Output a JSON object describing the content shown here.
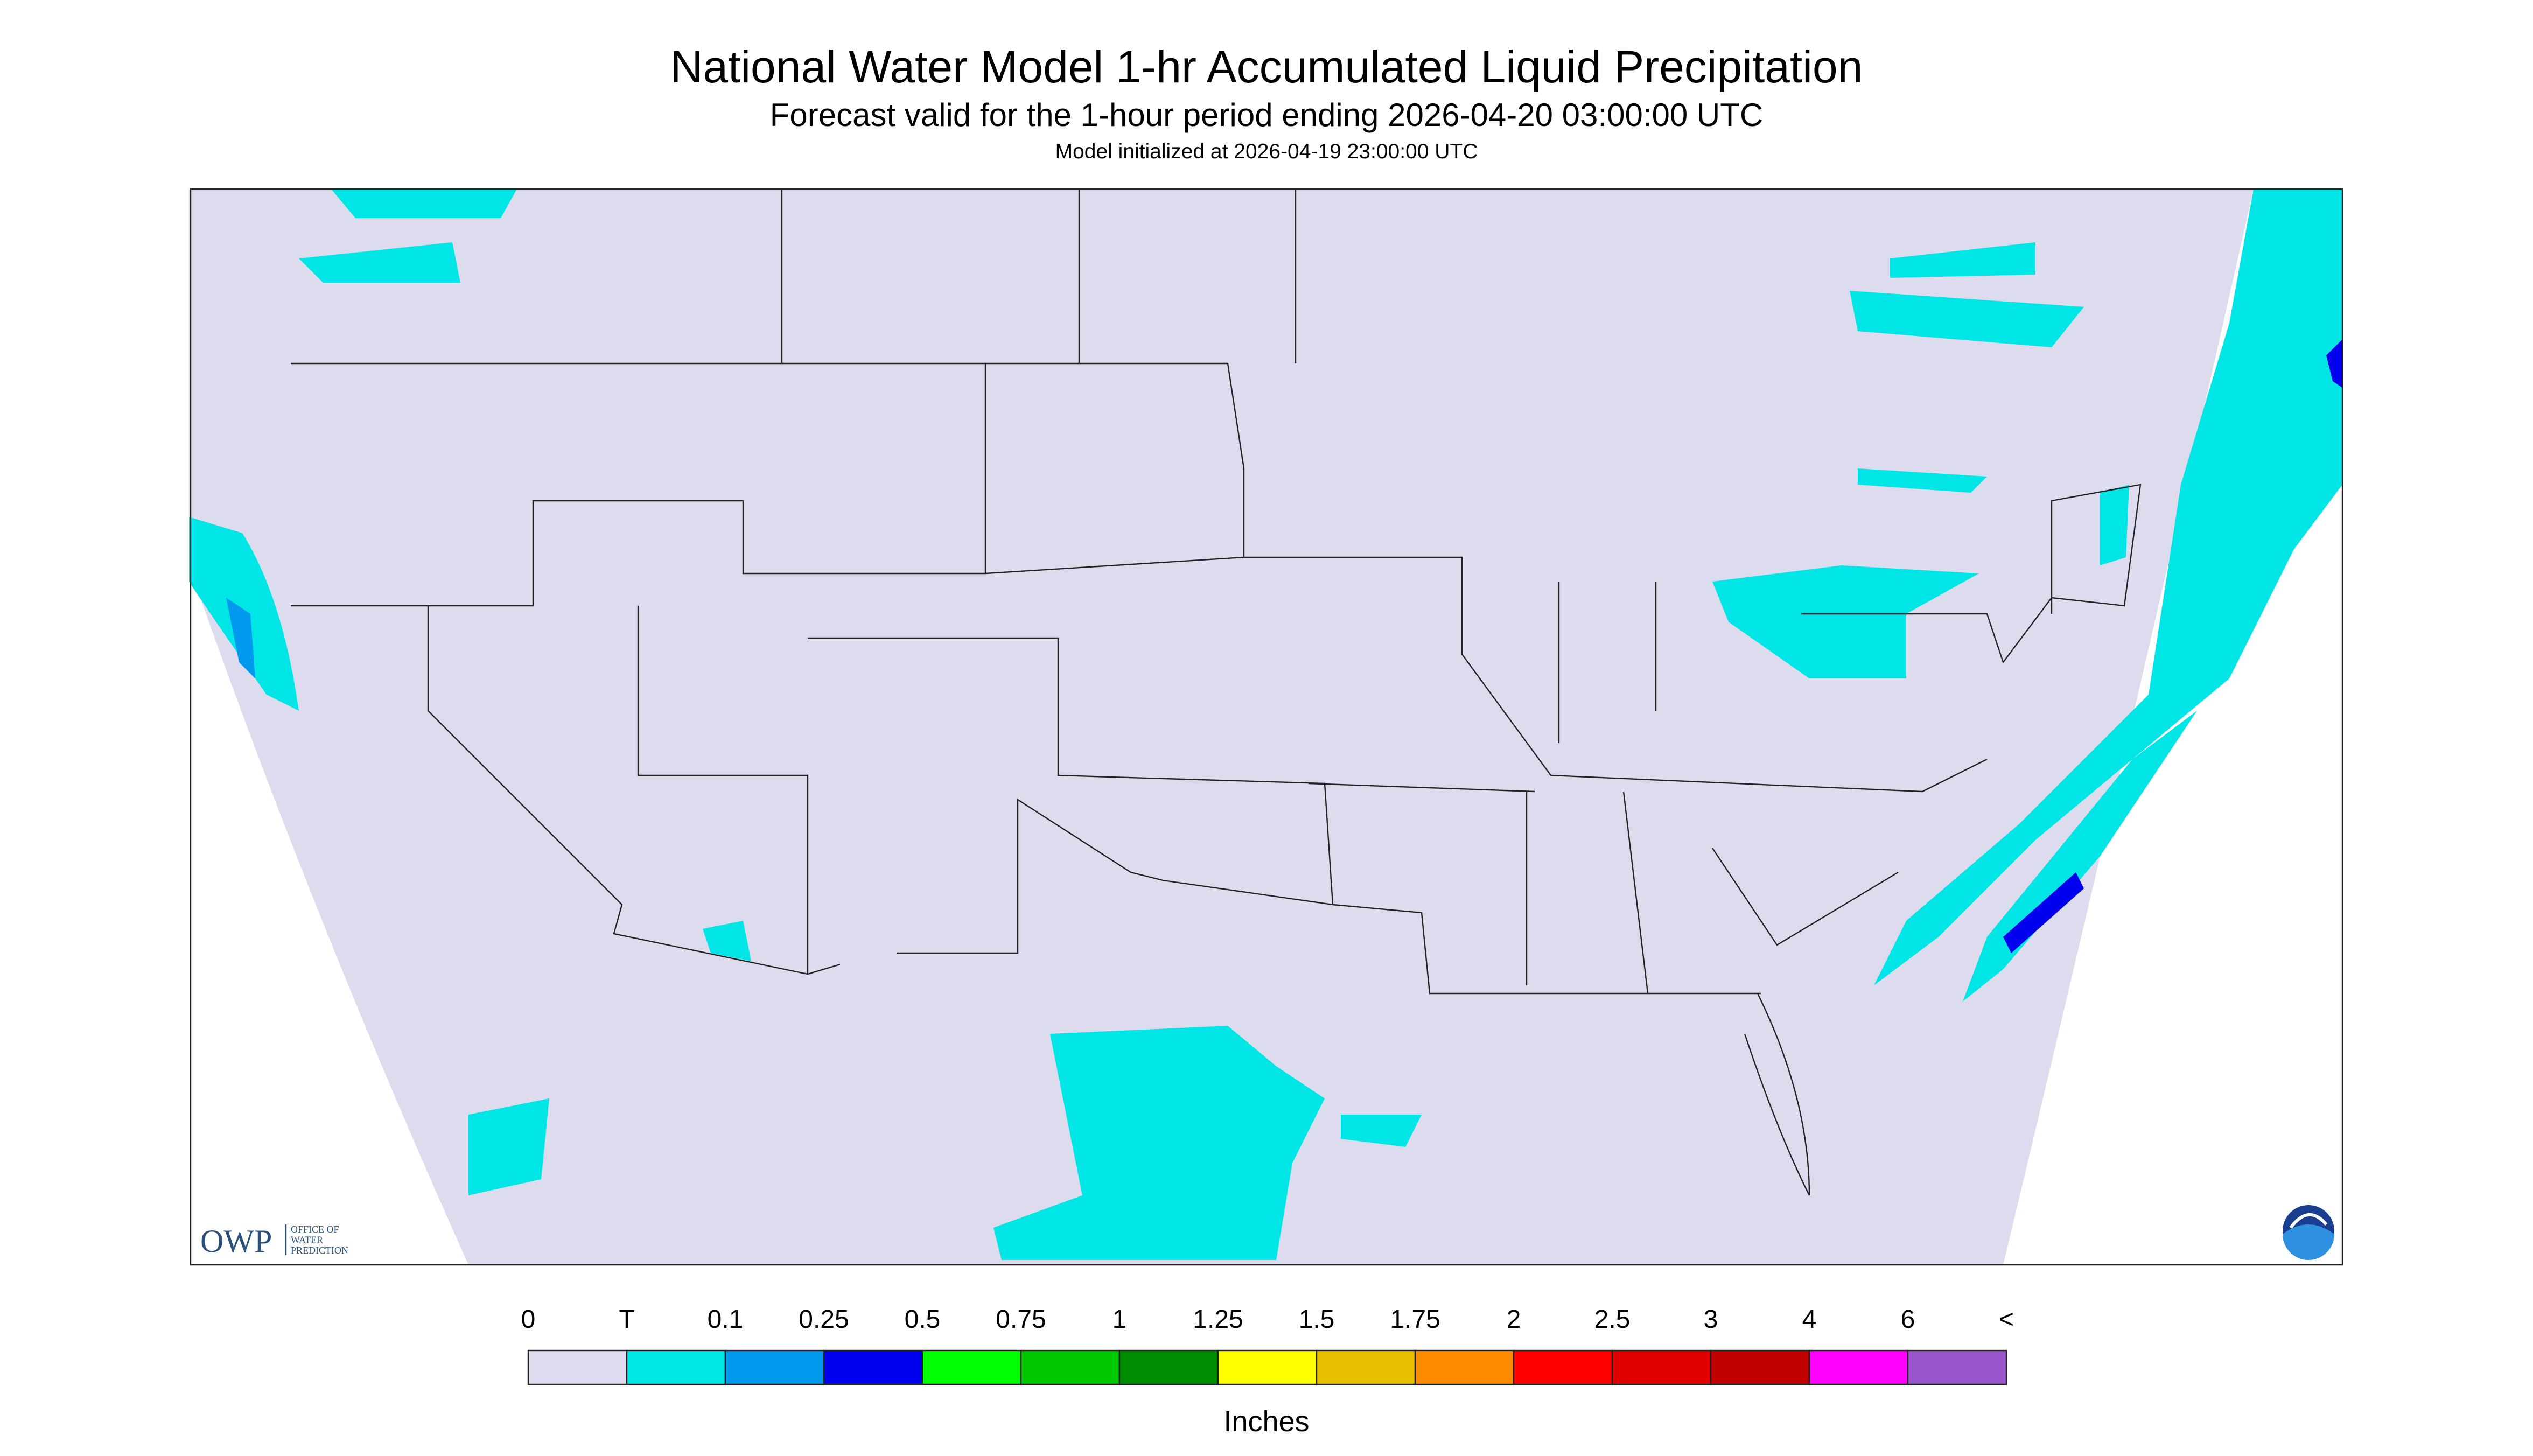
{
  "header": {
    "title": "National Water Model 1-hr Accumulated Liquid Precipitation",
    "subtitle": "Forecast valid for the 1-hour period ending 2026-04-20 03:00:00 UTC",
    "initialized": "Model initialized at 2026-04-19 23:00:00 UTC"
  },
  "legend": {
    "labels": [
      "0",
      "T",
      "0.1",
      "0.25",
      "0.5",
      "0.75",
      "1",
      "1.25",
      "1.5",
      "1.75",
      "2",
      "2.5",
      "3",
      "4",
      "6",
      "<"
    ],
    "colors": [
      "#dcdcee",
      "#00e5e5",
      "#0099ee",
      "#0000ee",
      "#00ff00",
      "#00c800",
      "#008c00",
      "#ffff00",
      "#e6c000",
      "#ff8c00",
      "#ff0000",
      "#e00000",
      "#c00000",
      "#ff00ff",
      "#9955cc"
    ],
    "unit": "Inches"
  },
  "logo": {
    "owp": "OWP",
    "owp_lines": [
      "OFFICE OF",
      "WATER",
      "PREDICTION"
    ]
  }
}
